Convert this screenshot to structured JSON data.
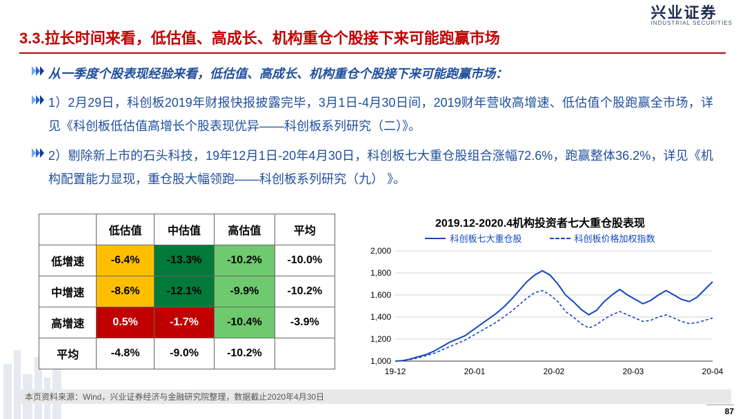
{
  "logo": {
    "cn": "兴业证券",
    "en": "INDUSTRIAL SECURITIES"
  },
  "title": "3.3.拉长时间来看，低估值、高成长、机构重仓个股接下来可能跑赢市场",
  "intro": "从一季度个股表现经验来看，低估值、高成长、机构重仓个股接下来可能跑赢市场：",
  "para1": "1）2月29日，科创板2019年财报快报披露完毕，3月1日-4月30日间，2019财年营收高增速、低估值个股跑赢全市场，详见《科创板低估值高增长个股表现优异——科创板系列研究（二）》。",
  "para2": "2）剔除新上市的石头科技，19年12月1日-20年4月30日，科创板七大重仓股组合涨幅72.6%，跑赢整体36.2%，详见《机构配置能力显现，重仓股大幅领跑——科创板系列研究（九）  》。",
  "table": {
    "col_headers": [
      "",
      "低估值",
      "中估值",
      "高估值",
      "平均"
    ],
    "row_headers": [
      "低增速",
      "中增速",
      "高增速",
      "平均"
    ],
    "cells": [
      [
        {
          "v": "-6.4%",
          "bg": "#ffbf00"
        },
        {
          "v": "-13.3%",
          "bg": "#027a3a"
        },
        {
          "v": "-10.2%",
          "bg": "#6fc96f"
        },
        {
          "v": "-10.0%",
          "bg": "#ffffff"
        }
      ],
      [
        {
          "v": "-8.6%",
          "bg": "#ffbf00"
        },
        {
          "v": "-12.1%",
          "bg": "#027a3a"
        },
        {
          "v": "-9.9%",
          "bg": "#6fc96f"
        },
        {
          "v": "-10.2%",
          "bg": "#ffffff"
        }
      ],
      [
        {
          "v": "0.5%",
          "bg": "#c00000",
          "fg": "#ffffff"
        },
        {
          "v": "-1.7%",
          "bg": "#c00000",
          "fg": "#ffffff"
        },
        {
          "v": "-10.4%",
          "bg": "#6fc96f"
        },
        {
          "v": "-3.9%",
          "bg": "#ffffff"
        }
      ],
      [
        {
          "v": "-4.8%",
          "bg": "#ffffff"
        },
        {
          "v": "-9.0%",
          "bg": "#ffffff"
        },
        {
          "v": "-10.2%",
          "bg": "#ffffff"
        },
        {
          "v": "",
          "bg": "#ffffff"
        }
      ]
    ]
  },
  "chart": {
    "title": "2019.12-2020.4机构投资者七大重仓股表现",
    "legend1": "科创板七大重仓股",
    "legend2": "科创板价格加权指数",
    "ymin": 1000,
    "ymax": 2000,
    "ystep": 200,
    "yticks": [
      "1,000",
      "1,200",
      "1,400",
      "1,600",
      "1,800",
      "2,000"
    ],
    "xticks": [
      "19-12",
      "20-01",
      "20-02",
      "20-03",
      "20-04"
    ],
    "series1": [
      1000,
      1005,
      1020,
      1040,
      1060,
      1090,
      1130,
      1170,
      1200,
      1230,
      1280,
      1330,
      1380,
      1430,
      1490,
      1560,
      1640,
      1720,
      1780,
      1820,
      1780,
      1700,
      1600,
      1540,
      1470,
      1420,
      1460,
      1540,
      1600,
      1650,
      1600,
      1560,
      1520,
      1550,
      1600,
      1640,
      1600,
      1560,
      1540,
      1580,
      1650,
      1720
    ],
    "series2": [
      1000,
      1005,
      1015,
      1030,
      1050,
      1070,
      1100,
      1130,
      1160,
      1190,
      1230,
      1270,
      1310,
      1350,
      1400,
      1450,
      1510,
      1570,
      1620,
      1640,
      1600,
      1540,
      1450,
      1400,
      1340,
      1300,
      1330,
      1380,
      1420,
      1450,
      1420,
      1390,
      1360,
      1370,
      1400,
      1420,
      1390,
      1360,
      1340,
      1350,
      1370,
      1390
    ],
    "line_color": "#1245c0",
    "grid_color": "#d0d0d0",
    "axis_color": "#333333",
    "tick_fontsize": 12
  },
  "footnote": "本页资料来源：Wind，兴业证券经济与金融研究院整理，数据截止2020年4月30日",
  "page_number": "87"
}
